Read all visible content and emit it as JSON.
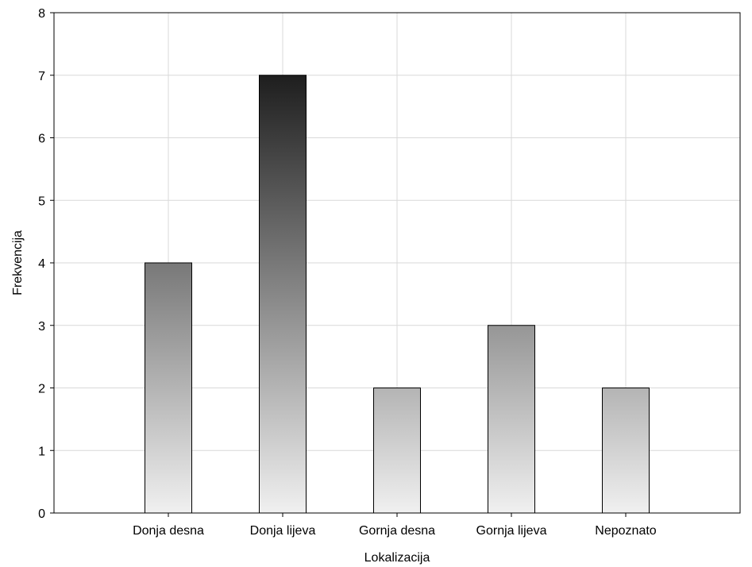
{
  "chart_data": {
    "type": "bar",
    "categories": [
      "Donja desna",
      "Donja lijeva",
      "Gornja desna",
      "Gornja lijeva",
      "Nepoznato"
    ],
    "values": [
      4,
      7,
      2,
      3,
      2
    ],
    "xlabel": "Lokalizacija",
    "ylabel": "Frekvencija",
    "ylim": [
      0,
      8
    ],
    "yticks": [
      "0",
      "1",
      "2",
      "3",
      "4",
      "5",
      "6",
      "7",
      "8"
    ],
    "grid": true,
    "legend": "none",
    "bar_gradient": {
      "top_color_at_max": "#1e1e1e",
      "bottom_color": "#f0f0f0"
    }
  }
}
